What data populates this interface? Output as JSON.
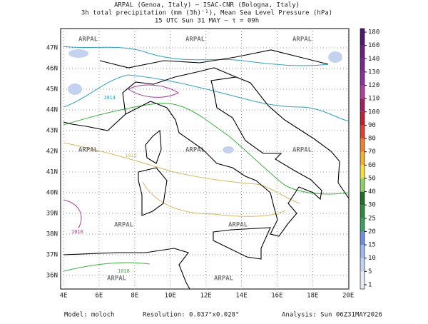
{
  "header": {
    "line1": "ARPAL (Genoa, Italy)  –  ISAC-CNR (Bologna, Italy)",
    "line2": "3h total precipitation (mm (3h)⁻¹), Mean Sea Level Pressure (hPa)",
    "line3": "15 UTC Sun 31 MAY  –  τ = 09h"
  },
  "map": {
    "lon_labels": [
      "4E",
      "6E",
      "8E",
      "10E",
      "12E",
      "14E",
      "16E",
      "18E",
      "20E"
    ],
    "lat_labels": [
      "47N",
      "46N",
      "45N",
      "44N",
      "43N",
      "42N",
      "41N",
      "40N",
      "39N",
      "38N",
      "37N",
      "36N"
    ],
    "watermark": "ARPAL",
    "isobar_labels": [
      "1012",
      "1016",
      "1018",
      "1014"
    ]
  },
  "colorbar": {
    "levels": [
      1,
      5,
      10,
      15,
      20,
      25,
      30,
      40,
      50,
      60,
      70,
      80,
      90,
      100,
      110,
      120,
      130,
      140,
      160,
      180
    ],
    "colors": [
      "#e6ebf5",
      "#c4d2f0",
      "#9fb6ea",
      "#6e8fe0",
      "#3aa060",
      "#2e8a40",
      "#1f6e2c",
      "#8fd060",
      "#f0e040",
      "#f0b030",
      "#f08030",
      "#e04030",
      "#c02030",
      "#a02060",
      "#b040a0",
      "#9030a0",
      "#7a2890",
      "#6a2080",
      "#501870"
    ]
  },
  "footer": {
    "model": "Model: moloch",
    "resolution": "Resolution: 0.037°x0.028°",
    "analysis": "Analysis: Sun 06Z31MAY2026"
  }
}
